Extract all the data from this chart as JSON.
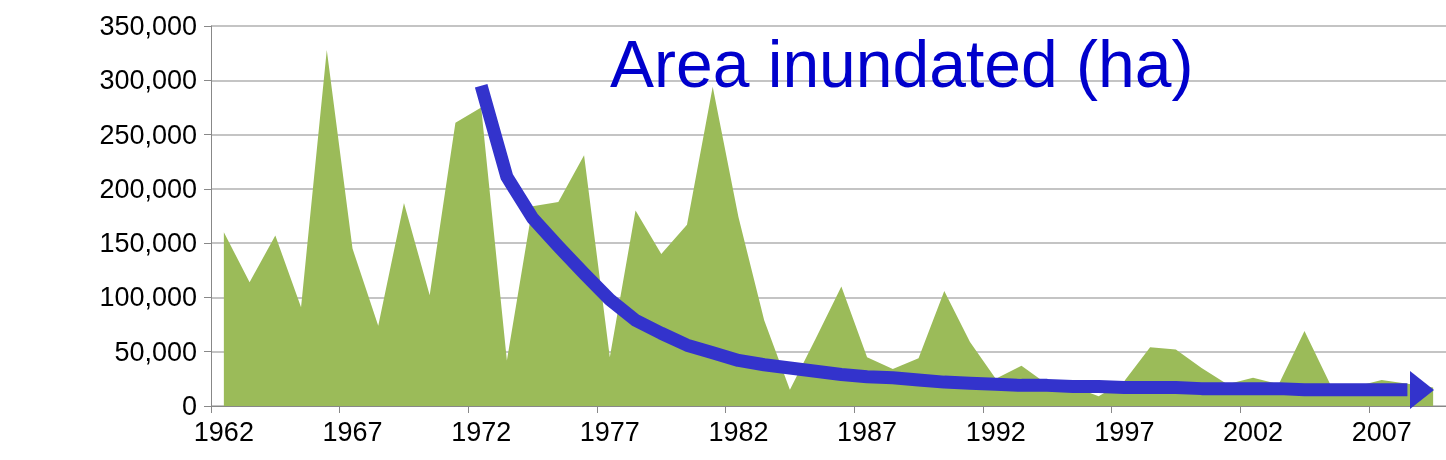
{
  "chart_data": {
    "type": "area",
    "title": "Area inundated (ha)",
    "categories": [
      "1962",
      null,
      null,
      null,
      null,
      "1967",
      null,
      null,
      null,
      null,
      "1972",
      null,
      null,
      null,
      null,
      "1977",
      null,
      null,
      null,
      null,
      "1982",
      null,
      null,
      null,
      null,
      "1987",
      null,
      null,
      null,
      null,
      "1992",
      null,
      null,
      null,
      null,
      "1997",
      null,
      null,
      null,
      null,
      "2002",
      null,
      null,
      null,
      null,
      "2007",
      null,
      null
    ],
    "series": [
      {
        "color": "#9bbb59",
        "values": [
          160000,
          114000,
          157000,
          91000,
          328000,
          145000,
          74000,
          187000,
          102000,
          261000,
          275000,
          42000,
          184000,
          188000,
          231000,
          45000,
          180000,
          140000,
          167000,
          294000,
          174000,
          79000,
          15000,
          62000,
          110000,
          45000,
          34000,
          44000,
          106000,
          59000,
          25000,
          37000,
          20000,
          18000,
          9000,
          23000,
          54000,
          52000,
          35000,
          20000,
          26000,
          20000,
          69000,
          20000,
          18000,
          24000,
          null,
          17000
        ]
      },
      {
        "type": "line",
        "color": "#3333cc",
        "values": [
          null,
          null,
          null,
          null,
          null,
          null,
          null,
          null,
          null,
          null,
          295000,
          211000,
          173000,
          147000,
          122000,
          98000,
          79000,
          67000,
          56000,
          49000,
          42000,
          38000,
          35000,
          32000,
          29000,
          27000,
          26000,
          24000,
          22000,
          21000,
          20000,
          19000,
          19000,
          18000,
          18000,
          17000,
          17000,
          17000,
          16000,
          16000,
          16000,
          16000,
          15000,
          15000,
          15000,
          15000,
          15000,
          null
        ]
      }
    ],
    "ylim": [
      0,
      350000
    ],
    "yticks": [
      {
        "value": 0,
        "label": "0"
      },
      {
        "value": 50000,
        "label": "50,000"
      },
      {
        "value": 100000,
        "label": "100,000"
      },
      {
        "value": 150000,
        "label": "150,000"
      },
      {
        "value": 200000,
        "label": "200,000"
      },
      {
        "value": 250000,
        "label": "250,000"
      },
      {
        "value": 300000,
        "label": "300,000"
      },
      {
        "value": 350000,
        "label": "350,000"
      }
    ],
    "grid": "y",
    "marker": "none"
  }
}
